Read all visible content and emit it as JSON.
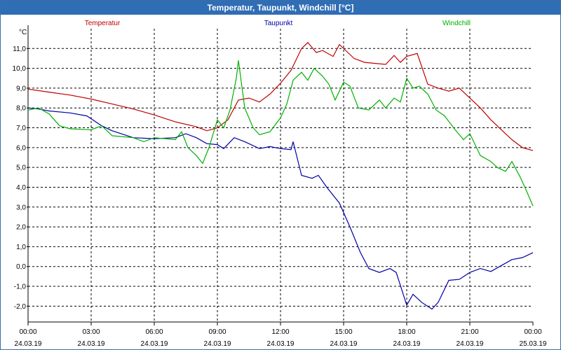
{
  "window": {
    "title": "Temperatur, Taupunkt, Windchill [°C]"
  },
  "chart_data": {
    "type": "line",
    "title": "Temperatur, Taupunkt, Windchill [°C]",
    "ylabel": "°C",
    "ylim": [
      -2.8,
      12.0
    ],
    "xlim": [
      0,
      24
    ],
    "y_ticks": [
      11.0,
      10.0,
      9.0,
      8.0,
      7.0,
      6.0,
      5.0,
      4.0,
      3.0,
      2.0,
      1.0,
      0.0,
      -1.0,
      -2.0
    ],
    "y_tick_labels": [
      "11,0",
      "10,0",
      "9,0",
      "8,0",
      "7,0",
      "6,0",
      "5,0",
      "4,0",
      "3,0",
      "2,0",
      "1,0",
      "0,0",
      "-1,0",
      "-2,0"
    ],
    "x_ticks": [
      {
        "x": 0,
        "time": "00:00",
        "date": "24.03.19"
      },
      {
        "x": 3,
        "time": "03:00",
        "date": "24.03.19"
      },
      {
        "x": 6,
        "time": "06:00",
        "date": "24.03.19"
      },
      {
        "x": 9,
        "time": "09:00",
        "date": "24.03.19"
      },
      {
        "x": 12,
        "time": "12:00",
        "date": "24.03.19"
      },
      {
        "x": 15,
        "time": "15:00",
        "date": "24.03.19"
      },
      {
        "x": 18,
        "time": "18:00",
        "date": "24.03.19"
      },
      {
        "x": 21,
        "time": "21:00",
        "date": "24.03.19"
      },
      {
        "x": 24,
        "time": "00:00",
        "date": "25.03.19"
      }
    ],
    "grid": true,
    "legend_placement": "top",
    "series": [
      {
        "name": "Temperatur",
        "color": "#c00000",
        "points": [
          [
            0,
            8.95
          ],
          [
            1,
            8.8
          ],
          [
            2,
            8.65
          ],
          [
            3,
            8.45
          ],
          [
            4,
            8.2
          ],
          [
            5,
            7.95
          ],
          [
            6,
            7.65
          ],
          [
            7,
            7.3
          ],
          [
            8,
            7.05
          ],
          [
            8.5,
            6.85
          ],
          [
            9,
            7.0
          ],
          [
            9.5,
            7.4
          ],
          [
            10,
            8.4
          ],
          [
            10.5,
            8.5
          ],
          [
            11,
            8.3
          ],
          [
            11.5,
            8.7
          ],
          [
            12,
            9.25
          ],
          [
            12.5,
            9.9
          ],
          [
            13,
            11.0
          ],
          [
            13.3,
            11.3
          ],
          [
            13.7,
            10.8
          ],
          [
            14,
            10.9
          ],
          [
            14.5,
            10.6
          ],
          [
            14.8,
            11.2
          ],
          [
            15.2,
            10.8
          ],
          [
            15.5,
            10.5
          ],
          [
            16,
            10.3
          ],
          [
            17,
            10.2
          ],
          [
            17.4,
            10.65
          ],
          [
            17.7,
            10.3
          ],
          [
            18,
            10.6
          ],
          [
            18.5,
            10.75
          ],
          [
            19,
            9.2
          ],
          [
            19.5,
            9.0
          ],
          [
            20,
            8.85
          ],
          [
            20.5,
            9.0
          ],
          [
            21,
            8.5
          ],
          [
            21.5,
            8.0
          ],
          [
            22,
            7.4
          ],
          [
            22.5,
            6.9
          ],
          [
            23,
            6.4
          ],
          [
            23.5,
            6.0
          ],
          [
            24,
            5.85
          ]
        ]
      },
      {
        "name": "Taupunkt",
        "color": "#0000a8",
        "points": [
          [
            0,
            8.0
          ],
          [
            0.5,
            7.95
          ],
          [
            1,
            7.85
          ],
          [
            2,
            7.75
          ],
          [
            2.8,
            7.6
          ],
          [
            3.5,
            7.1
          ],
          [
            4,
            6.85
          ],
          [
            5,
            6.5
          ],
          [
            6,
            6.45
          ],
          [
            7,
            6.5
          ],
          [
            7.5,
            6.7
          ],
          [
            8,
            6.5
          ],
          [
            8.5,
            6.2
          ],
          [
            9,
            6.15
          ],
          [
            9.3,
            5.95
          ],
          [
            9.8,
            6.5
          ],
          [
            10.3,
            6.3
          ],
          [
            11,
            5.95
          ],
          [
            11.5,
            6.05
          ],
          [
            12,
            5.95
          ],
          [
            12.5,
            5.9
          ],
          [
            12.6,
            6.3
          ],
          [
            13,
            4.6
          ],
          [
            13.5,
            4.45
          ],
          [
            13.8,
            4.6
          ],
          [
            14.2,
            4.0
          ],
          [
            14.8,
            3.2
          ],
          [
            15.3,
            2.0
          ],
          [
            15.8,
            0.7
          ],
          [
            16.2,
            -0.1
          ],
          [
            16.7,
            -0.3
          ],
          [
            17.2,
            -0.1
          ],
          [
            17.5,
            -0.3
          ],
          [
            18.0,
            -1.95
          ],
          [
            18.3,
            -1.4
          ],
          [
            18.7,
            -1.8
          ],
          [
            19.2,
            -2.15
          ],
          [
            19.5,
            -1.8
          ],
          [
            20.0,
            -0.7
          ],
          [
            20.5,
            -0.65
          ],
          [
            21,
            -0.3
          ],
          [
            21.5,
            -0.1
          ],
          [
            22,
            -0.25
          ],
          [
            22.5,
            0.05
          ],
          [
            23,
            0.35
          ],
          [
            23.5,
            0.45
          ],
          [
            24,
            0.7
          ]
        ]
      },
      {
        "name": "Windchill",
        "color": "#00b000",
        "points": [
          [
            0,
            7.9
          ],
          [
            0.5,
            8.0
          ],
          [
            1,
            7.7
          ],
          [
            1.5,
            7.1
          ],
          [
            2,
            6.95
          ],
          [
            3,
            6.9
          ],
          [
            3.5,
            7.1
          ],
          [
            4,
            6.6
          ],
          [
            5,
            6.5
          ],
          [
            5.5,
            6.3
          ],
          [
            6,
            6.5
          ],
          [
            7,
            6.4
          ],
          [
            7.3,
            6.8
          ],
          [
            7.6,
            6.0
          ],
          [
            8,
            5.6
          ],
          [
            8.3,
            5.2
          ],
          [
            8.6,
            6.0
          ],
          [
            9,
            7.4
          ],
          [
            9.3,
            7.0
          ],
          [
            9.6,
            7.9
          ],
          [
            9.9,
            9.5
          ],
          [
            10,
            10.4
          ],
          [
            10.3,
            8.0
          ],
          [
            10.7,
            7.0
          ],
          [
            11,
            6.65
          ],
          [
            11.5,
            6.8
          ],
          [
            12,
            7.5
          ],
          [
            12.3,
            8.2
          ],
          [
            12.6,
            9.4
          ],
          [
            13,
            9.8
          ],
          [
            13.3,
            9.4
          ],
          [
            13.6,
            10.0
          ],
          [
            14,
            9.6
          ],
          [
            14.3,
            9.2
          ],
          [
            14.6,
            8.4
          ],
          [
            15,
            9.3
          ],
          [
            15.3,
            9.1
          ],
          [
            15.7,
            8.0
          ],
          [
            16.2,
            7.9
          ],
          [
            16.7,
            8.4
          ],
          [
            17.0,
            8.0
          ],
          [
            17.4,
            8.5
          ],
          [
            17.7,
            8.3
          ],
          [
            18.0,
            9.5
          ],
          [
            18.3,
            9.0
          ],
          [
            18.6,
            9.1
          ],
          [
            19.0,
            8.7
          ],
          [
            19.4,
            7.9
          ],
          [
            19.8,
            7.6
          ],
          [
            20.3,
            6.9
          ],
          [
            20.7,
            6.4
          ],
          [
            21,
            6.7
          ],
          [
            21.5,
            5.6
          ],
          [
            22,
            5.3
          ],
          [
            22.3,
            5.0
          ],
          [
            22.7,
            4.8
          ],
          [
            23,
            5.3
          ],
          [
            23.4,
            4.5
          ],
          [
            23.7,
            3.8
          ],
          [
            24,
            3.05
          ]
        ]
      }
    ]
  }
}
